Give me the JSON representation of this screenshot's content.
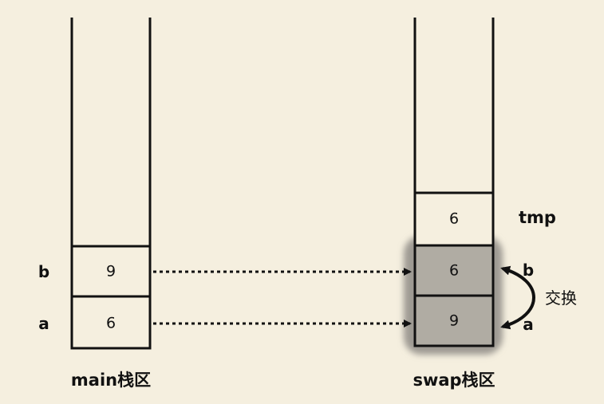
{
  "main_stack": {
    "label": "main栈区",
    "cells": [
      {
        "var": "b",
        "value": "9"
      },
      {
        "var": "a",
        "value": "6"
      }
    ]
  },
  "swap_stack": {
    "label": "swap栈区",
    "tmp": {
      "name": "tmp",
      "value": "6"
    },
    "cells": [
      {
        "var": "b",
        "value": "6"
      },
      {
        "var": "a",
        "value": "9"
      }
    ]
  },
  "swap_annotation": "交换",
  "colors": {
    "background": "#f5efdf",
    "highlight": "#9e9a93",
    "shaded_cell": "#b0aca3",
    "line": "#111111"
  }
}
